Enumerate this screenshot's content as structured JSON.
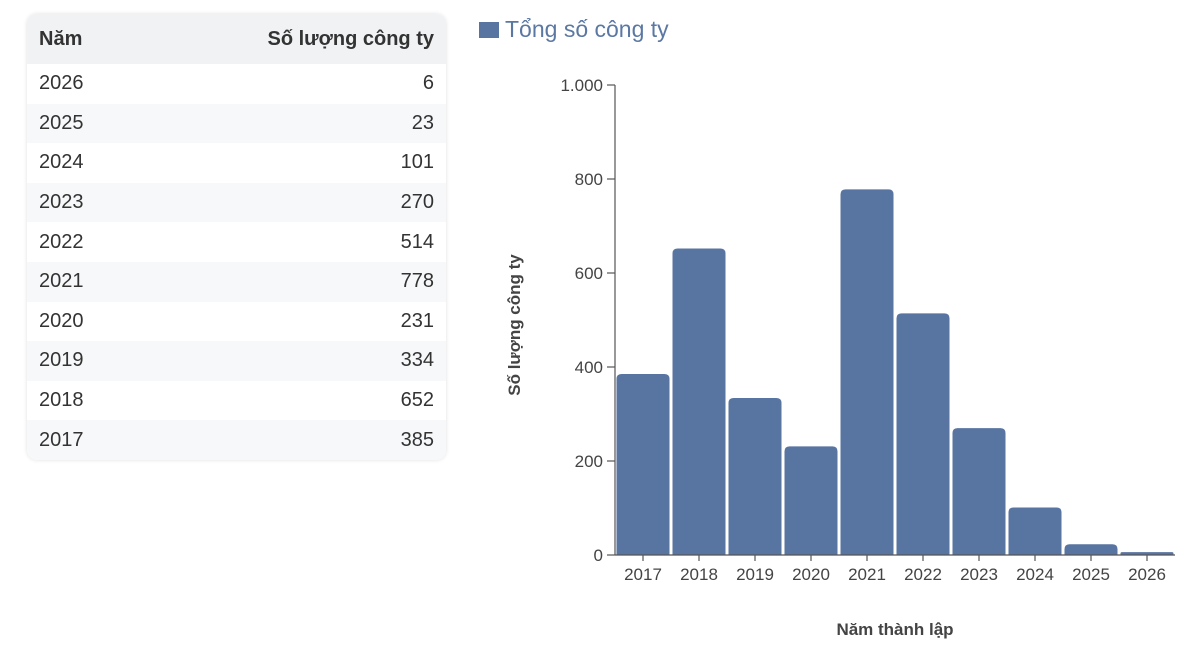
{
  "table": {
    "headers": {
      "year": "Năm",
      "count": "Số lượng công ty"
    },
    "rows": [
      {
        "year": "2026",
        "count": "6"
      },
      {
        "year": "2025",
        "count": "23"
      },
      {
        "year": "2024",
        "count": "101"
      },
      {
        "year": "2023",
        "count": "270"
      },
      {
        "year": "2022",
        "count": "514"
      },
      {
        "year": "2021",
        "count": "778"
      },
      {
        "year": "2020",
        "count": "231"
      },
      {
        "year": "2019",
        "count": "334"
      },
      {
        "year": "2018",
        "count": "652"
      },
      {
        "year": "2017",
        "count": "385"
      }
    ]
  },
  "chart_data": {
    "type": "bar",
    "categories": [
      "2017",
      "2018",
      "2019",
      "2020",
      "2021",
      "2022",
      "2023",
      "2024",
      "2025",
      "2026"
    ],
    "series": [
      {
        "name": "Tổng số công ty",
        "values": [
          385,
          652,
          334,
          231,
          778,
          514,
          270,
          101,
          23,
          6
        ],
        "color": "#5874a1"
      }
    ],
    "xlabel": "Năm thành lập",
    "ylabel": "Số lượng công ty",
    "ylim": [
      0,
      1000
    ],
    "yticks": [
      0,
      200,
      400,
      600,
      800,
      1000
    ],
    "ytick_labels": [
      "0",
      "200",
      "400",
      "600",
      "800",
      "1.000"
    ],
    "legend": "top-left",
    "grid": false
  }
}
